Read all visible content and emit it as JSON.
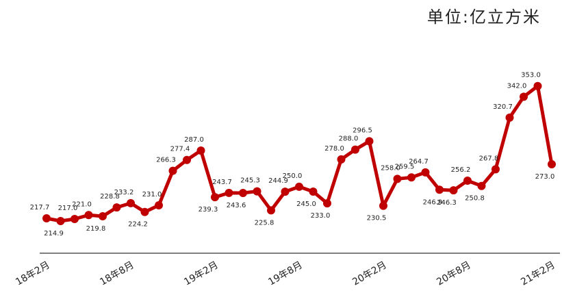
{
  "chart_data": {
    "type": "line",
    "unit_label": "单位:亿立方米",
    "categories": [
      "18年2月",
      null,
      null,
      null,
      null,
      null,
      "18年8月",
      null,
      null,
      null,
      null,
      null,
      "19年2月",
      null,
      null,
      null,
      null,
      null,
      "19年8月",
      null,
      null,
      null,
      null,
      null,
      "20年2月",
      null,
      null,
      null,
      null,
      null,
      "20年8月",
      null,
      null,
      null,
      null,
      null,
      "21年2月"
    ],
    "series": [
      {
        "color": "#c00000",
        "values": [
          217.7,
          214.9,
          217.0,
          221.0,
          219.8,
          228.8,
          233.2,
          224.2,
          231.0,
          266.3,
          277.4,
          287.0,
          239.3,
          243.7,
          243.6,
          245.3,
          225.8,
          244.9,
          250.0,
          245.0,
          233.0,
          278.0,
          288.0,
          296.5,
          230.5,
          258.0,
          259.5,
          264.7,
          246.9,
          246.3,
          256.2,
          250.8,
          267.8,
          320.7,
          342.0,
          353.0,
          273.0
        ],
        "value_labels": [
          "217.7",
          "214.9",
          "217.0",
          "221.0",
          "219.8",
          "228.8",
          "233.2",
          "224.2",
          "231.0",
          "266.3",
          "277.4",
          "287.0",
          "239.3",
          "243.7",
          "243.6",
          "245.3",
          "225.8",
          "244.9",
          "250.0",
          "245.0",
          "233.0",
          "278.0",
          "288.0",
          "296.5",
          "230.5",
          "258.0",
          "259.5",
          "264.7",
          "246.9",
          "246.3",
          "256.2",
          "250.8",
          "267.8",
          "320.7",
          "342.0",
          "353.0",
          "273.0"
        ]
      }
    ],
    "ylim": [
      182,
      371
    ]
  }
}
